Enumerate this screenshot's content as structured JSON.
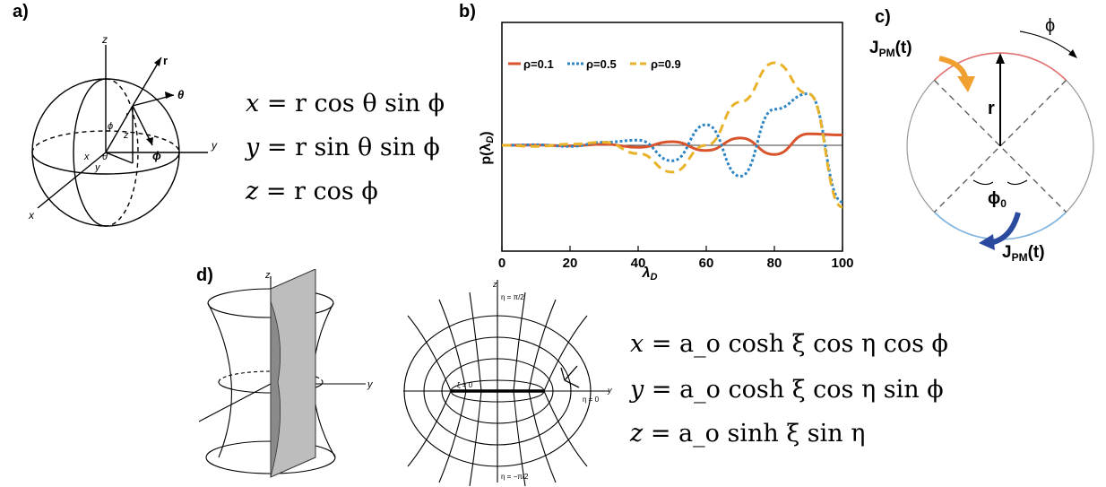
{
  "panel_labels": {
    "a": "a)",
    "b": "b)",
    "c": "c)",
    "d": "d)"
  },
  "panel_a": {
    "axes": {
      "x": "x",
      "y": "y",
      "z": "z"
    },
    "symbols": {
      "r_outer": "r",
      "theta_outer": "θ",
      "phi_outer": "ϕ",
      "phi_inner": "ϕ",
      "r_inner": "r",
      "z_inner": "z",
      "x_inner": "x",
      "theta_inner": "θ",
      "y_inner": "y"
    },
    "equations": [
      {
        "lhs": "x",
        "rhs": "r cos θ sin ϕ"
      },
      {
        "lhs": "y",
        "rhs": "r sin θ sin ϕ"
      },
      {
        "lhs": "z",
        "rhs": "r cos ϕ"
      }
    ]
  },
  "panel_b": {
    "chart_data": {
      "type": "line",
      "xlabel": "λ",
      "xlabel_sub": "D",
      "ylabel": "p(λ",
      "ylabel_sub": "D",
      "ylabel_close": ")",
      "xlim": [
        0,
        100
      ],
      "x_ticks": [
        "0",
        "20",
        "40",
        "60",
        "80",
        "100"
      ],
      "legend_position": "top-left",
      "series": [
        {
          "name": "ρ=0.1",
          "color": "#d9542c",
          "style": "solid",
          "x": [
            0,
            10,
            20,
            30,
            40,
            50,
            60,
            70,
            80,
            90,
            100
          ],
          "y": [
            0,
            0.002,
            -0.005,
            0.01,
            -0.02,
            0.035,
            -0.05,
            0.07,
            -0.09,
            0.11,
            0.1
          ]
        },
        {
          "name": "ρ=0.5",
          "color": "#2f86c4",
          "style": "dotted",
          "x": [
            0,
            10,
            20,
            30,
            40,
            50,
            60,
            70,
            80,
            90,
            100
          ],
          "y": [
            0,
            0.005,
            -0.01,
            0.03,
            0.05,
            -0.15,
            0.2,
            -0.3,
            0.35,
            0.5,
            -0.55
          ]
        },
        {
          "name": "ρ=0.9",
          "color": "#e8b32a",
          "style": "dashed",
          "x": [
            0,
            10,
            20,
            30,
            40,
            50,
            60,
            70,
            80,
            90,
            100
          ],
          "y": [
            0,
            -0.01,
            0.01,
            0.03,
            -0.08,
            -0.26,
            0,
            0.42,
            0.8,
            0.5,
            -0.6
          ]
        }
      ]
    }
  },
  "panel_c": {
    "j_top": {
      "main": "J",
      "sub": "PM",
      "arg": "(t)"
    },
    "j_bottom": {
      "main": "J",
      "sub": "PM",
      "arg": "(t)"
    },
    "phi": "ϕ",
    "r": "r",
    "phi0": {
      "main": "ϕ",
      "sub": "0"
    },
    "colors": {
      "top_arc": "#e57373",
      "bottom_arc": "#80b4e0",
      "top_arrow": "#f0a030",
      "bottom_arrow": "#2a4aa0"
    }
  },
  "panel_d": {
    "axes_left": {
      "z": "z",
      "y": "y",
      "x": "x"
    },
    "ellipse_labels": {
      "z": "z",
      "top": "η = π/2",
      "bottom": "η = −π/2",
      "xi0": "ξ = 0",
      "y": "y",
      "eta0": "η = 0"
    },
    "equations": [
      {
        "lhs": "x",
        "rhs": "a_o cosh ξ cos η cos ϕ"
      },
      {
        "lhs": "y",
        "rhs": "a_o cosh ξ cos η sin ϕ"
      },
      {
        "lhs": "z",
        "rhs": "a_o sinh ξ sin η"
      }
    ]
  }
}
